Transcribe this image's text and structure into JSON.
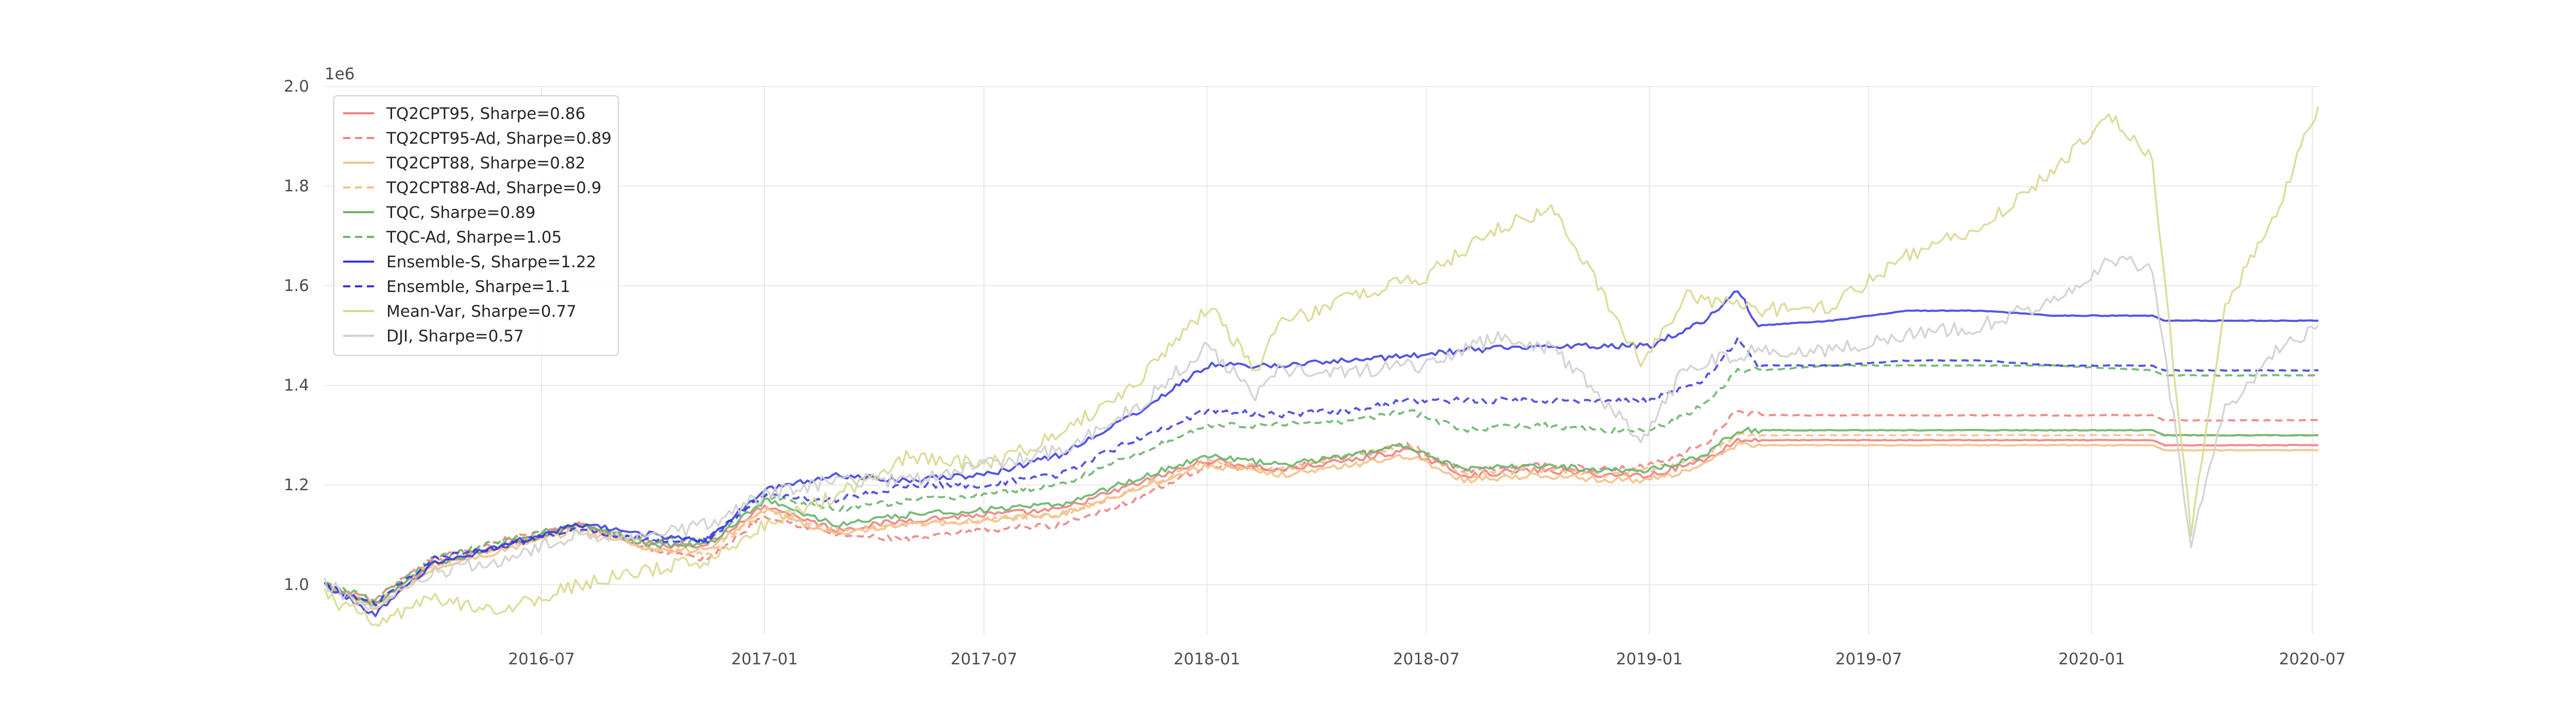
{
  "chart_data": {
    "type": "line",
    "title": "",
    "xlabel": "",
    "ylabel": "",
    "y_offset_label": "1e6",
    "xlim": [
      "2016-01-04",
      "2020-07-06"
    ],
    "ylim": [
      0.9,
      2.0
    ],
    "y_ticks": [
      1.0,
      1.2,
      1.4,
      1.6,
      1.8,
      2.0
    ],
    "y_tick_labels": [
      "1.0",
      "1.2",
      "1.4",
      "1.6",
      "1.8",
      "2.0"
    ],
    "x_ticks": [
      "2016-07-01",
      "2017-01-01",
      "2017-07-01",
      "2018-01-01",
      "2018-07-01",
      "2019-01-01",
      "2019-07-01",
      "2020-01-01",
      "2020-07-01"
    ],
    "x_tick_labels": [
      "2016-07",
      "2017-01",
      "2017-07",
      "2018-01",
      "2018-07",
      "2019-01",
      "2019-07",
      "2020-01",
      "2020-07"
    ],
    "grid": true,
    "legend_position": "top-left",
    "series": [
      {
        "name": "TQ2CPT95, Sharpe=0.86",
        "color": "#f08080",
        "dash": "solid",
        "x": [
          "2016-01-04",
          "2016-02-15",
          "2016-04-01",
          "2016-06-01",
          "2016-08-01",
          "2016-10-01",
          "2016-11-15",
          "2017-01-01",
          "2017-03-01",
          "2017-05-01",
          "2017-07-01",
          "2017-09-01",
          "2017-11-01",
          "2018-01-02",
          "2018-03-01",
          "2018-05-01",
          "2018-06-15",
          "2018-08-01",
          "2018-10-01",
          "2018-12-01",
          "2019-01-02",
          "2019-02-15",
          "2019-03-15",
          "2019-04-01",
          "2019-06-01",
          "2019-08-01",
          "2019-10-01",
          "2019-12-01",
          "2020-02-20",
          "2020-03-01",
          "2020-05-01",
          "2020-07-06"
        ],
        "y": [
          1.0,
          0.96,
          1.04,
          1.08,
          1.12,
          1.08,
          1.08,
          1.16,
          1.11,
          1.13,
          1.14,
          1.15,
          1.2,
          1.25,
          1.23,
          1.25,
          1.27,
          1.22,
          1.23,
          1.22,
          1.22,
          1.25,
          1.29,
          1.29,
          1.29,
          1.29,
          1.29,
          1.29,
          1.29,
          1.28,
          1.28,
          1.28
        ]
      },
      {
        "name": "TQ2CPT95-Ad, Sharpe=0.89",
        "color": "#f08080",
        "dash": "dashed",
        "x": [
          "2016-01-04",
          "2016-02-15",
          "2016-04-01",
          "2016-06-01",
          "2016-08-01",
          "2016-10-01",
          "2016-11-15",
          "2017-01-01",
          "2017-03-01",
          "2017-05-01",
          "2017-07-01",
          "2017-09-01",
          "2017-11-01",
          "2018-01-02",
          "2018-03-01",
          "2018-05-01",
          "2018-06-15",
          "2018-08-01",
          "2018-10-01",
          "2018-12-01",
          "2019-01-02",
          "2019-02-15",
          "2019-03-15",
          "2019-04-01",
          "2019-06-01",
          "2019-08-01",
          "2019-10-01",
          "2019-12-01",
          "2020-02-20",
          "2020-03-01",
          "2020-05-01",
          "2020-07-06"
        ],
        "y": [
          1.0,
          0.97,
          1.05,
          1.09,
          1.12,
          1.07,
          1.05,
          1.14,
          1.1,
          1.09,
          1.11,
          1.12,
          1.17,
          1.24,
          1.23,
          1.26,
          1.28,
          1.23,
          1.24,
          1.23,
          1.24,
          1.28,
          1.35,
          1.34,
          1.34,
          1.34,
          1.34,
          1.34,
          1.34,
          1.33,
          1.33,
          1.33
        ]
      },
      {
        "name": "TQ2CPT88, Sharpe=0.82",
        "color": "#f5c088",
        "dash": "solid",
        "x": [
          "2016-01-04",
          "2016-02-15",
          "2016-04-01",
          "2016-06-01",
          "2016-08-01",
          "2016-10-01",
          "2016-11-15",
          "2017-01-01",
          "2017-03-01",
          "2017-05-01",
          "2017-07-01",
          "2017-09-01",
          "2017-11-01",
          "2018-01-02",
          "2018-03-01",
          "2018-05-01",
          "2018-06-15",
          "2018-08-01",
          "2018-10-01",
          "2018-12-01",
          "2019-01-02",
          "2019-02-15",
          "2019-03-15",
          "2019-04-01",
          "2019-06-01",
          "2019-08-01",
          "2019-10-01",
          "2019-12-01",
          "2020-02-20",
          "2020-03-01",
          "2020-05-01",
          "2020-07-06"
        ],
        "y": [
          1.0,
          0.95,
          1.03,
          1.07,
          1.11,
          1.07,
          1.07,
          1.15,
          1.1,
          1.12,
          1.13,
          1.14,
          1.19,
          1.24,
          1.22,
          1.24,
          1.26,
          1.21,
          1.22,
          1.21,
          1.21,
          1.24,
          1.28,
          1.28,
          1.28,
          1.28,
          1.28,
          1.28,
          1.28,
          1.27,
          1.27,
          1.27
        ]
      },
      {
        "name": "TQ2CPT88-Ad, Sharpe=0.9",
        "color": "#f5c088",
        "dash": "dashed",
        "x": [
          "2016-01-04",
          "2016-02-15",
          "2016-04-01",
          "2016-06-01",
          "2016-08-01",
          "2016-10-01",
          "2016-11-15",
          "2017-01-01",
          "2017-03-01",
          "2017-05-01",
          "2017-07-01",
          "2017-09-01",
          "2017-11-01",
          "2018-01-02",
          "2018-03-01",
          "2018-05-01",
          "2018-06-15",
          "2018-08-01",
          "2018-10-01",
          "2018-12-01",
          "2019-01-02",
          "2019-02-15",
          "2019-03-15",
          "2019-04-01",
          "2019-06-01",
          "2019-08-01",
          "2019-10-01",
          "2019-12-01",
          "2020-02-20",
          "2020-03-01",
          "2020-05-01",
          "2020-07-06"
        ],
        "y": [
          1.0,
          0.96,
          1.04,
          1.08,
          1.12,
          1.07,
          1.06,
          1.15,
          1.11,
          1.12,
          1.13,
          1.14,
          1.19,
          1.25,
          1.23,
          1.26,
          1.28,
          1.22,
          1.23,
          1.22,
          1.23,
          1.26,
          1.3,
          1.3,
          1.3,
          1.3,
          1.3,
          1.3,
          1.3,
          1.3,
          1.3,
          1.3
        ]
      },
      {
        "name": "TQC, Sharpe=0.89",
        "color": "#6ab46a",
        "dash": "solid",
        "x": [
          "2016-01-04",
          "2016-02-15",
          "2016-04-01",
          "2016-06-01",
          "2016-08-01",
          "2016-10-01",
          "2016-11-15",
          "2017-01-01",
          "2017-03-01",
          "2017-05-01",
          "2017-07-01",
          "2017-09-01",
          "2017-11-01",
          "2018-01-02",
          "2018-03-01",
          "2018-05-01",
          "2018-06-15",
          "2018-08-01",
          "2018-10-01",
          "2018-12-01",
          "2019-01-02",
          "2019-02-15",
          "2019-03-15",
          "2019-04-01",
          "2019-06-01",
          "2019-08-01",
          "2019-10-01",
          "2019-12-01",
          "2020-02-20",
          "2020-03-01",
          "2020-05-01",
          "2020-07-06"
        ],
        "y": [
          1.0,
          0.96,
          1.04,
          1.08,
          1.12,
          1.08,
          1.08,
          1.17,
          1.12,
          1.14,
          1.15,
          1.16,
          1.21,
          1.26,
          1.24,
          1.26,
          1.28,
          1.23,
          1.24,
          1.23,
          1.23,
          1.26,
          1.31,
          1.31,
          1.31,
          1.31,
          1.31,
          1.31,
          1.31,
          1.3,
          1.3,
          1.3
        ]
      },
      {
        "name": "TQC-Ad, Sharpe=1.05",
        "color": "#6ab46a",
        "dash": "dashed",
        "x": [
          "2016-01-04",
          "2016-02-15",
          "2016-04-01",
          "2016-06-01",
          "2016-08-01",
          "2016-10-01",
          "2016-11-15",
          "2017-01-01",
          "2017-03-01",
          "2017-05-01",
          "2017-07-01",
          "2017-09-01",
          "2017-11-01",
          "2018-01-02",
          "2018-03-01",
          "2018-05-01",
          "2018-06-15",
          "2018-08-01",
          "2018-10-01",
          "2018-12-01",
          "2019-01-02",
          "2019-02-15",
          "2019-03-15",
          "2019-04-01",
          "2019-06-01",
          "2019-08-01",
          "2019-10-01",
          "2019-12-01",
          "2020-02-20",
          "2020-03-01",
          "2020-05-01",
          "2020-07-06"
        ],
        "y": [
          1.0,
          0.97,
          1.05,
          1.09,
          1.12,
          1.09,
          1.09,
          1.18,
          1.15,
          1.17,
          1.18,
          1.2,
          1.26,
          1.32,
          1.32,
          1.33,
          1.35,
          1.31,
          1.32,
          1.31,
          1.31,
          1.36,
          1.43,
          1.43,
          1.44,
          1.44,
          1.44,
          1.44,
          1.43,
          1.42,
          1.42,
          1.42
        ]
      },
      {
        "name": "Ensemble-S, Sharpe=1.22",
        "color": "#3535e0",
        "dash": "solid",
        "x": [
          "2016-01-04",
          "2016-02-15",
          "2016-04-01",
          "2016-06-01",
          "2016-08-01",
          "2016-10-01",
          "2016-11-15",
          "2017-01-01",
          "2017-03-01",
          "2017-05-01",
          "2017-07-01",
          "2017-09-01",
          "2017-11-01",
          "2018-01-02",
          "2018-03-01",
          "2018-05-01",
          "2018-06-15",
          "2018-08-01",
          "2018-10-01",
          "2018-12-01",
          "2019-01-02",
          "2019-02-15",
          "2019-03-15",
          "2019-04-01",
          "2019-06-01",
          "2019-08-01",
          "2019-10-01",
          "2019-12-01",
          "2020-02-20",
          "2020-03-01",
          "2020-05-01",
          "2020-07-06"
        ],
        "y": [
          1.0,
          0.94,
          1.04,
          1.08,
          1.12,
          1.1,
          1.09,
          1.19,
          1.22,
          1.21,
          1.22,
          1.26,
          1.34,
          1.44,
          1.44,
          1.45,
          1.46,
          1.47,
          1.48,
          1.48,
          1.48,
          1.53,
          1.59,
          1.52,
          1.53,
          1.55,
          1.55,
          1.54,
          1.54,
          1.53,
          1.53,
          1.53
        ]
      },
      {
        "name": "Ensemble, Sharpe=1.1",
        "color": "#3535e0",
        "dash": "dashed",
        "x": [
          "2016-01-04",
          "2016-02-15",
          "2016-04-01",
          "2016-06-01",
          "2016-08-01",
          "2016-10-01",
          "2016-11-15",
          "2017-01-01",
          "2017-03-01",
          "2017-05-01",
          "2017-07-01",
          "2017-09-01",
          "2017-11-01",
          "2018-01-02",
          "2018-03-01",
          "2018-05-01",
          "2018-06-15",
          "2018-08-01",
          "2018-10-01",
          "2018-12-01",
          "2019-01-02",
          "2019-02-15",
          "2019-03-15",
          "2019-04-01",
          "2019-06-01",
          "2019-08-01",
          "2019-10-01",
          "2019-12-01",
          "2020-02-20",
          "2020-03-01",
          "2020-05-01",
          "2020-07-06"
        ],
        "y": [
          1.0,
          0.96,
          1.05,
          1.08,
          1.11,
          1.09,
          1.09,
          1.18,
          1.17,
          1.2,
          1.2,
          1.22,
          1.29,
          1.35,
          1.34,
          1.35,
          1.37,
          1.37,
          1.37,
          1.37,
          1.37,
          1.41,
          1.49,
          1.44,
          1.44,
          1.45,
          1.45,
          1.44,
          1.44,
          1.43,
          1.43,
          1.43
        ]
      },
      {
        "name": "Mean-Var, Sharpe=0.77",
        "color": "#d8d890",
        "dash": "solid",
        "x": [
          "2016-01-04",
          "2016-02-15",
          "2016-04-01",
          "2016-06-01",
          "2016-08-01",
          "2016-10-01",
          "2016-11-15",
          "2017-01-01",
          "2017-03-01",
          "2017-05-01",
          "2017-07-01",
          "2017-09-01",
          "2017-11-01",
          "2018-01-02",
          "2018-02-10",
          "2018-03-01",
          "2018-05-01",
          "2018-07-01",
          "2018-09-01",
          "2018-10-15",
          "2018-12-25",
          "2019-02-01",
          "2019-04-01",
          "2019-06-01",
          "2019-08-01",
          "2019-10-01",
          "2019-12-01",
          "2020-01-15",
          "2020-02-20",
          "2020-03-23",
          "2020-04-20",
          "2020-06-01",
          "2020-07-06"
        ],
        "y": [
          0.98,
          0.92,
          0.97,
          0.95,
          1.0,
          1.03,
          1.05,
          1.12,
          1.18,
          1.26,
          1.24,
          1.3,
          1.4,
          1.56,
          1.43,
          1.52,
          1.58,
          1.62,
          1.72,
          1.75,
          1.45,
          1.58,
          1.55,
          1.56,
          1.66,
          1.72,
          1.83,
          1.95,
          1.85,
          1.1,
          1.55,
          1.75,
          1.96
        ]
      },
      {
        "name": "DJI, Sharpe=0.57",
        "color": "#cfcfcf",
        "dash": "solid",
        "x": [
          "2016-01-04",
          "2016-02-15",
          "2016-04-01",
          "2016-06-01",
          "2016-08-01",
          "2016-10-01",
          "2016-11-15",
          "2017-01-01",
          "2017-03-01",
          "2017-05-01",
          "2017-07-01",
          "2017-09-01",
          "2017-11-01",
          "2018-01-02",
          "2018-02-10",
          "2018-03-01",
          "2018-05-01",
          "2018-07-01",
          "2018-09-01",
          "2018-10-15",
          "2018-12-25",
          "2019-02-01",
          "2019-04-01",
          "2019-06-01",
          "2019-08-01",
          "2019-10-01",
          "2019-12-01",
          "2020-01-15",
          "2020-02-20",
          "2020-03-23",
          "2020-04-20",
          "2020-06-01",
          "2020-07-06"
        ],
        "y": [
          1.0,
          0.95,
          1.02,
          1.05,
          1.1,
          1.1,
          1.12,
          1.18,
          1.21,
          1.21,
          1.24,
          1.27,
          1.35,
          1.48,
          1.38,
          1.43,
          1.43,
          1.44,
          1.5,
          1.47,
          1.29,
          1.44,
          1.47,
          1.47,
          1.5,
          1.52,
          1.57,
          1.65,
          1.64,
          1.08,
          1.35,
          1.47,
          1.52
        ]
      }
    ]
  }
}
